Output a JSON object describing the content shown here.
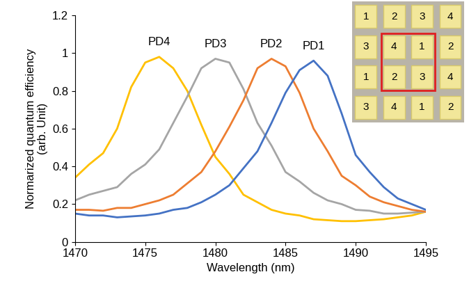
{
  "chart_data": {
    "type": "line",
    "x_label": "Wavelength (nm)",
    "y_label": "Normarized quantum efficiency\n(arb. Unit)",
    "x": [
      1470,
      1471,
      1472,
      1473,
      1474,
      1475,
      1476,
      1477,
      1478,
      1479,
      1480,
      1481,
      1482,
      1483,
      1484,
      1485,
      1486,
      1487,
      1488,
      1489,
      1490,
      1491,
      1492,
      1493,
      1494,
      1495
    ],
    "series": [
      {
        "name": "PD4",
        "color": "#FFC000",
        "values": [
          0.34,
          0.41,
          0.47,
          0.6,
          0.82,
          0.95,
          0.98,
          0.92,
          0.8,
          0.62,
          0.45,
          0.36,
          0.25,
          0.21,
          0.17,
          0.15,
          0.14,
          0.12,
          0.115,
          0.11,
          0.11,
          0.115,
          0.12,
          0.13,
          0.14,
          0.16
        ]
      },
      {
        "name": "PD3",
        "color": "#A5A5A5",
        "values": [
          0.22,
          0.25,
          0.27,
          0.29,
          0.36,
          0.41,
          0.49,
          0.63,
          0.77,
          0.92,
          0.97,
          0.95,
          0.81,
          0.63,
          0.51,
          0.37,
          0.32,
          0.26,
          0.22,
          0.2,
          0.17,
          0.165,
          0.15,
          0.15,
          0.155,
          0.16
        ]
      },
      {
        "name": "PD2",
        "color": "#ED7D31",
        "values": [
          0.17,
          0.17,
          0.165,
          0.18,
          0.18,
          0.2,
          0.22,
          0.25,
          0.31,
          0.37,
          0.48,
          0.61,
          0.75,
          0.92,
          0.97,
          0.93,
          0.79,
          0.6,
          0.48,
          0.35,
          0.3,
          0.24,
          0.21,
          0.19,
          0.17,
          0.16
        ]
      },
      {
        "name": "PD1",
        "color": "#4472C4",
        "values": [
          0.15,
          0.14,
          0.14,
          0.13,
          0.135,
          0.14,
          0.15,
          0.17,
          0.18,
          0.21,
          0.25,
          0.3,
          0.39,
          0.48,
          0.63,
          0.79,
          0.91,
          0.96,
          0.88,
          0.68,
          0.46,
          0.37,
          0.29,
          0.23,
          0.2,
          0.17
        ]
      }
    ],
    "xlim": [
      1470,
      1495
    ],
    "xticks": [
      1470,
      1475,
      1480,
      1485,
      1490,
      1495
    ],
    "ylim": [
      0,
      1.2
    ],
    "yticks": [
      0,
      0.2,
      0.4,
      0.6,
      0.8,
      1,
      1.2
    ],
    "grid": false,
    "inset_grid": [
      [
        1,
        2,
        3,
        4
      ],
      [
        3,
        4,
        1,
        2
      ],
      [
        1,
        2,
        3,
        4
      ],
      [
        3,
        4,
        1,
        2
      ]
    ]
  }
}
